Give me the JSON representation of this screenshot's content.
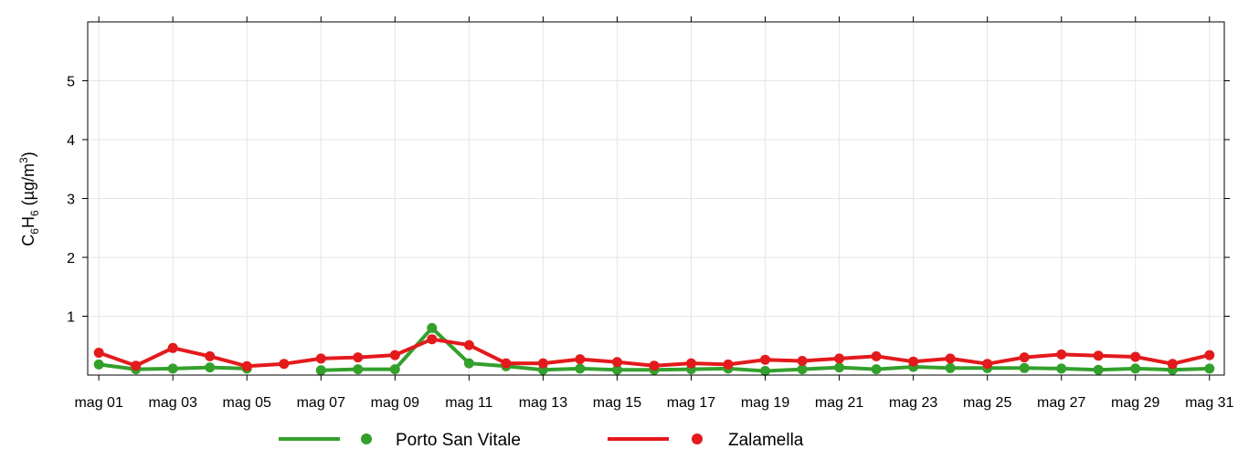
{
  "chart_data": {
    "type": "line",
    "title": "",
    "xlabel": "",
    "ylabel_main": "C",
    "ylabel_sub1": "6",
    "ylabel_mid": "H",
    "ylabel_sub2": "6",
    "ylabel_unit_open": " (µg/m",
    "ylabel_unit_sup": "3",
    "ylabel_unit_close": ")",
    "ylim": [
      0,
      6
    ],
    "yticks": [
      "1",
      "2",
      "3",
      "4",
      "5"
    ],
    "xlim": [
      0.7,
      31.4
    ],
    "xticks": [
      {
        "day": 1,
        "label": "mag 01"
      },
      {
        "day": 3,
        "label": "mag 03"
      },
      {
        "day": 5,
        "label": "mag 05"
      },
      {
        "day": 7,
        "label": "mag 07"
      },
      {
        "day": 9,
        "label": "mag 09"
      },
      {
        "day": 11,
        "label": "mag 11"
      },
      {
        "day": 13,
        "label": "mag 13"
      },
      {
        "day": 15,
        "label": "mag 15"
      },
      {
        "day": 17,
        "label": "mag 17"
      },
      {
        "day": 19,
        "label": "mag 19"
      },
      {
        "day": 21,
        "label": "mag 21"
      },
      {
        "day": 23,
        "label": "mag 23"
      },
      {
        "day": 25,
        "label": "mag 25"
      },
      {
        "day": 27,
        "label": "mag 27"
      },
      {
        "day": 29,
        "label": "mag 29"
      },
      {
        "day": 31,
        "label": "mag 31"
      }
    ],
    "grid": true,
    "legend_position": "bottom",
    "x": [
      1,
      2,
      3,
      4,
      5,
      6,
      7,
      8,
      9,
      10,
      11,
      12,
      13,
      14,
      15,
      16,
      17,
      18,
      19,
      20,
      21,
      22,
      23,
      24,
      25,
      26,
      27,
      28,
      29,
      30,
      31
    ],
    "series": [
      {
        "name": "Porto San Vitale",
        "color": "#33a02c",
        "values": [
          0.18,
          0.1,
          0.11,
          0.13,
          0.11,
          null,
          0.08,
          0.1,
          0.1,
          0.8,
          0.2,
          0.15,
          0.09,
          0.11,
          0.09,
          0.09,
          0.1,
          0.11,
          0.07,
          0.1,
          0.13,
          0.1,
          0.14,
          0.12,
          0.12,
          0.12,
          0.11,
          0.09,
          0.11,
          0.09,
          0.11
        ]
      },
      {
        "name": "Zalamella",
        "color": "#e31a1c",
        "values": [
          0.38,
          0.16,
          0.46,
          0.32,
          0.15,
          0.19,
          0.28,
          0.3,
          0.34,
          0.61,
          0.51,
          0.2,
          0.2,
          0.27,
          0.22,
          0.16,
          0.2,
          0.18,
          0.26,
          0.24,
          0.28,
          0.32,
          0.23,
          0.28,
          0.19,
          0.3,
          0.35,
          0.33,
          0.31,
          0.19,
          0.34
        ]
      }
    ]
  }
}
